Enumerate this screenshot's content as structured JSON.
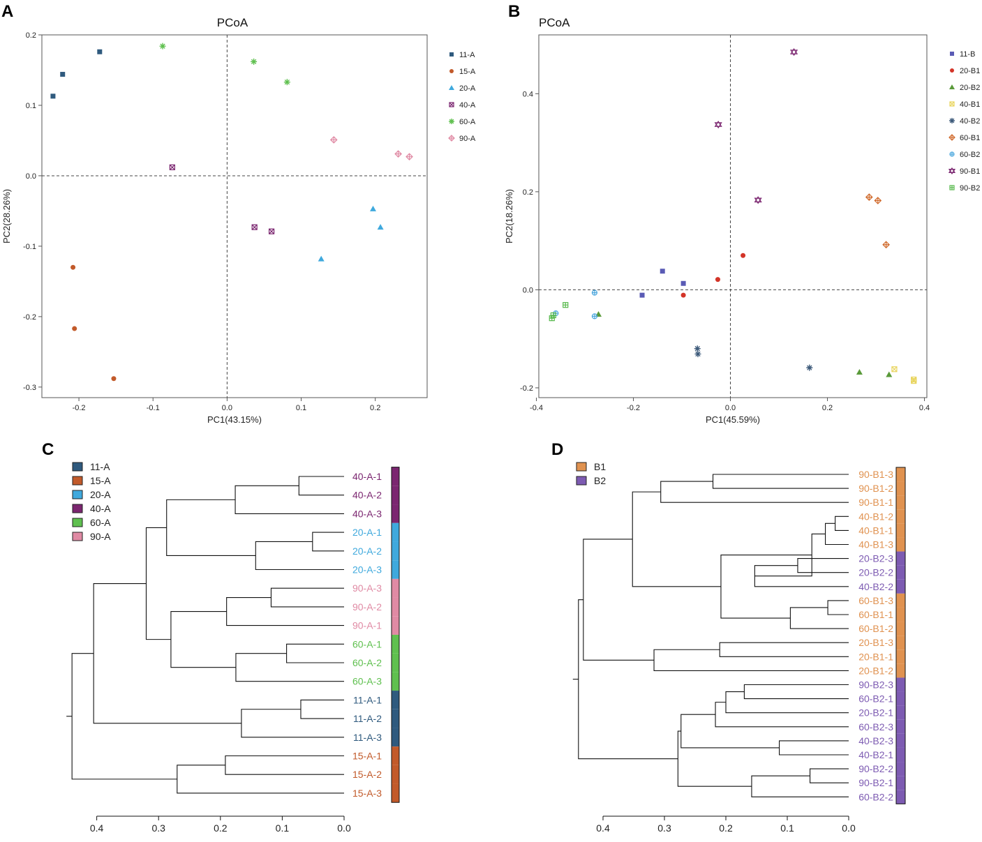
{
  "chart_data": [
    {
      "panel": "A",
      "type": "scatter",
      "title": "PCoA",
      "xlabel": "PC1(43.15%)",
      "ylabel": "PC2(28.26%)",
      "xlim": [
        -0.25,
        0.27
      ],
      "ylim": [
        -0.315,
        0.2
      ],
      "xticks": [
        -0.2,
        -0.1,
        0.0,
        0.1,
        0.2
      ],
      "yticks": [
        -0.3,
        -0.2,
        -0.1,
        0.0,
        0.1,
        0.2
      ],
      "xtick_labels": [
        "-0.2",
        "-0.1",
        "0.0",
        "0.1",
        "0.2"
      ],
      "ytick_labels": [
        "-0.3",
        "-0.2",
        "-0.1",
        "0.0",
        "0.1",
        "0.2"
      ],
      "legend_position": "right",
      "series": [
        {
          "name": "11-A",
          "marker": "square",
          "color": "#2f5a7e",
          "points": [
            [
              -0.235,
              0.113
            ],
            [
              -0.222,
              0.144
            ],
            [
              -0.172,
              0.176
            ]
          ]
        },
        {
          "name": "15-A",
          "marker": "circle",
          "color": "#c25a2a",
          "points": [
            [
              -0.208,
              -0.13
            ],
            [
              -0.206,
              -0.217
            ],
            [
              -0.153,
              -0.288
            ]
          ]
        },
        {
          "name": "20-A",
          "marker": "triangle",
          "color": "#3fa9dd",
          "points": [
            [
              0.127,
              -0.118
            ],
            [
              0.197,
              -0.047
            ],
            [
              0.207,
              -0.073
            ]
          ]
        },
        {
          "name": "40-A",
          "marker": "boxx",
          "color": "#7b2670",
          "points": [
            [
              -0.074,
              0.012
            ],
            [
              0.037,
              -0.073
            ],
            [
              0.06,
              -0.079
            ]
          ]
        },
        {
          "name": "60-A",
          "marker": "asterisk",
          "color": "#5fc04f",
          "points": [
            [
              -0.087,
              0.184
            ],
            [
              0.036,
              0.162
            ],
            [
              0.081,
              0.133
            ]
          ]
        },
        {
          "name": "90-A",
          "marker": "diamondplus",
          "color": "#e08aa4",
          "points": [
            [
              0.144,
              0.051
            ],
            [
              0.231,
              0.031
            ],
            [
              0.246,
              0.027
            ]
          ]
        }
      ]
    },
    {
      "panel": "B",
      "type": "scatter",
      "title": "PCoA",
      "xlabel": "PC1(45.59%)",
      "ylabel": "PC2(18.26%)",
      "xlim": [
        -0.395,
        0.405
      ],
      "ylim": [
        -0.22,
        0.52
      ],
      "xticks": [
        -0.4,
        -0.2,
        0.0,
        0.2,
        0.4
      ],
      "yticks": [
        -0.2,
        0.0,
        0.2,
        0.4
      ],
      "xtick_labels": [
        "-0.4",
        "-0.2",
        "0.0",
        "0.2",
        "0.4"
      ],
      "ytick_labels": [
        "-0.2",
        "0.0",
        "0.2",
        "0.4"
      ],
      "legend_position": "right",
      "series": [
        {
          "name": "11-B",
          "marker": "square",
          "color": "#5a5bb5",
          "points": [
            [
              -0.182,
              -0.011
            ],
            [
              -0.14,
              0.038
            ],
            [
              -0.097,
              0.013
            ]
          ]
        },
        {
          "name": "20-B1",
          "marker": "circle",
          "color": "#d33428",
          "points": [
            [
              -0.097,
              -0.011
            ],
            [
              -0.026,
              0.021
            ],
            [
              0.026,
              0.07
            ]
          ]
        },
        {
          "name": "20-B2",
          "marker": "triangle",
          "color": "#5a9a3a",
          "points": [
            [
              -0.272,
              -0.05
            ],
            [
              0.266,
              -0.168
            ],
            [
              0.327,
              -0.173
            ]
          ]
        },
        {
          "name": "40-B1",
          "marker": "boxx",
          "color": "#e8d45c",
          "points": [
            [
              0.338,
              -0.162
            ],
            [
              0.378,
              -0.183
            ],
            [
              0.378,
              -0.186
            ]
          ]
        },
        {
          "name": "40-B2",
          "marker": "asterisk",
          "color": "#3d5a7a",
          "points": [
            [
              -0.068,
              -0.12
            ],
            [
              -0.067,
              -0.131
            ],
            [
              0.163,
              -0.159
            ]
          ]
        },
        {
          "name": "60-B1",
          "marker": "diamondplus",
          "color": "#d06a2c",
          "points": [
            [
              0.286,
              0.189
            ],
            [
              0.304,
              0.182
            ],
            [
              0.321,
              0.092
            ]
          ]
        },
        {
          "name": "60-B2",
          "marker": "circleplus",
          "color": "#4aa6dd",
          "points": [
            [
              -0.36,
              -0.048
            ],
            [
              -0.28,
              -0.006
            ],
            [
              -0.28,
              -0.054
            ]
          ]
        },
        {
          "name": "90-B1",
          "marker": "star6",
          "color": "#7b2670",
          "points": [
            [
              -0.025,
              0.337
            ],
            [
              0.057,
              0.183
            ],
            [
              0.131,
              0.485
            ]
          ]
        },
        {
          "name": "90-B2",
          "marker": "boxplus",
          "color": "#55b84a",
          "points": [
            [
              -0.368,
              -0.058
            ],
            [
              -0.365,
              -0.052
            ],
            [
              -0.34,
              -0.031
            ]
          ]
        }
      ]
    },
    {
      "panel": "C",
      "type": "dendrogram",
      "axis_ticks": [
        0.4,
        0.3,
        0.2,
        0.1,
        0.0
      ],
      "axis_tick_labels": [
        "0.4",
        "0.3",
        "0.2",
        "0.1",
        "0.0"
      ],
      "legend": [
        {
          "label": "11-A",
          "color": "#2f5a7e"
        },
        {
          "label": "15-A",
          "color": "#c25a2a"
        },
        {
          "label": "20-A",
          "color": "#3fa9dd"
        },
        {
          "label": "40-A",
          "color": "#7b2670"
        },
        {
          "label": "60-A",
          "color": "#5fc04f"
        },
        {
          "label": "90-A",
          "color": "#e08aa4"
        }
      ],
      "leaves": [
        {
          "label": "40-A-1",
          "group": "40-A"
        },
        {
          "label": "40-A-2",
          "group": "40-A"
        },
        {
          "label": "40-A-3",
          "group": "40-A"
        },
        {
          "label": "20-A-1",
          "group": "20-A"
        },
        {
          "label": "20-A-2",
          "group": "20-A"
        },
        {
          "label": "20-A-3",
          "group": "20-A"
        },
        {
          "label": "90-A-3",
          "group": "90-A"
        },
        {
          "label": "90-A-2",
          "group": "90-A"
        },
        {
          "label": "90-A-1",
          "group": "90-A"
        },
        {
          "label": "60-A-1",
          "group": "60-A"
        },
        {
          "label": "60-A-2",
          "group": "60-A"
        },
        {
          "label": "60-A-3",
          "group": "60-A"
        },
        {
          "label": "11-A-1",
          "group": "11-A"
        },
        {
          "label": "11-A-2",
          "group": "11-A"
        },
        {
          "label": "11-A-3",
          "group": "11-A"
        },
        {
          "label": "15-A-1",
          "group": "15-A"
        },
        {
          "label": "15-A-2",
          "group": "15-A"
        },
        {
          "label": "15-A-3",
          "group": "15-A"
        }
      ],
      "merges": [
        [
          0,
          1,
          0.073
        ],
        [
          18,
          2,
          0.176
        ],
        [
          3,
          4,
          0.051
        ],
        [
          20,
          5,
          0.143
        ],
        [
          19,
          21,
          0.287
        ],
        [
          6,
          7,
          0.118
        ],
        [
          23,
          8,
          0.19
        ],
        [
          9,
          10,
          0.093
        ],
        [
          25,
          11,
          0.175
        ],
        [
          24,
          26,
          0.28
        ],
        [
          22,
          27,
          0.32
        ],
        [
          12,
          13,
          0.07
        ],
        [
          29,
          14,
          0.166
        ],
        [
          28,
          30,
          0.405
        ],
        [
          15,
          16,
          0.192
        ],
        [
          32,
          17,
          0.27
        ],
        [
          31,
          33,
          0.44
        ]
      ]
    },
    {
      "panel": "D",
      "type": "dendrogram",
      "axis_ticks": [
        0.4,
        0.3,
        0.2,
        0.1,
        0.0
      ],
      "axis_tick_labels": [
        "0.4",
        "0.3",
        "0.2",
        "0.1",
        "0.0"
      ],
      "legend": [
        {
          "label": "B1",
          "color": "#e09250"
        },
        {
          "label": "B2",
          "color": "#7d5bb2"
        }
      ],
      "leaves": [
        {
          "label": "90-B1-3",
          "group": "B1"
        },
        {
          "label": "90-B1-2",
          "group": "B1"
        },
        {
          "label": "90-B1-1",
          "group": "B1"
        },
        {
          "label": "40-B1-2",
          "group": "B1"
        },
        {
          "label": "40-B1-1",
          "group": "B1"
        },
        {
          "label": "40-B1-3",
          "group": "B1"
        },
        {
          "label": "20-B2-3",
          "group": "B2"
        },
        {
          "label": "20-B2-2",
          "group": "B2"
        },
        {
          "label": "40-B2-2",
          "group": "B2"
        },
        {
          "label": "60-B1-3",
          "group": "B1"
        },
        {
          "label": "60-B1-1",
          "group": "B1"
        },
        {
          "label": "60-B1-2",
          "group": "B1"
        },
        {
          "label": "20-B1-3",
          "group": "B1"
        },
        {
          "label": "20-B1-1",
          "group": "B1"
        },
        {
          "label": "20-B1-2",
          "group": "B1"
        },
        {
          "label": "90-B2-3",
          "group": "B2"
        },
        {
          "label": "60-B2-1",
          "group": "B2"
        },
        {
          "label": "20-B2-1",
          "group": "B2"
        },
        {
          "label": "60-B2-3",
          "group": "B2"
        },
        {
          "label": "40-B2-3",
          "group": "B2"
        },
        {
          "label": "40-B2-1",
          "group": "B2"
        },
        {
          "label": "90-B2-2",
          "group": "B2"
        },
        {
          "label": "90-B2-1",
          "group": "B2"
        },
        {
          "label": "60-B2-2",
          "group": "B2"
        }
      ],
      "merges": [
        [
          0,
          1,
          0.221
        ],
        [
          24,
          2,
          0.306
        ],
        [
          3,
          4,
          0.022
        ],
        [
          26,
          5,
          0.038
        ],
        [
          6,
          7,
          0.083
        ],
        [
          28,
          8,
          0.153
        ],
        [
          27,
          29,
          0.06
        ],
        [
          9,
          10,
          0.034
        ],
        [
          31,
          11,
          0.095
        ],
        [
          30,
          32,
          0.208
        ],
        [
          25,
          33,
          0.352
        ],
        [
          12,
          13,
          0.21
        ],
        [
          35,
          14,
          0.317
        ],
        [
          34,
          36,
          0.432
        ],
        [
          15,
          16,
          0.17
        ],
        [
          38,
          17,
          0.2
        ],
        [
          39,
          18,
          0.217
        ],
        [
          19,
          20,
          0.113
        ],
        [
          40,
          41,
          0.273
        ],
        [
          21,
          22,
          0.063
        ],
        [
          43,
          23,
          0.158
        ],
        [
          42,
          44,
          0.278
        ],
        [
          37,
          45,
          0.44
        ]
      ]
    }
  ],
  "panel_labels": {
    "a": "A",
    "b": "B",
    "c": "C",
    "d": "D"
  }
}
